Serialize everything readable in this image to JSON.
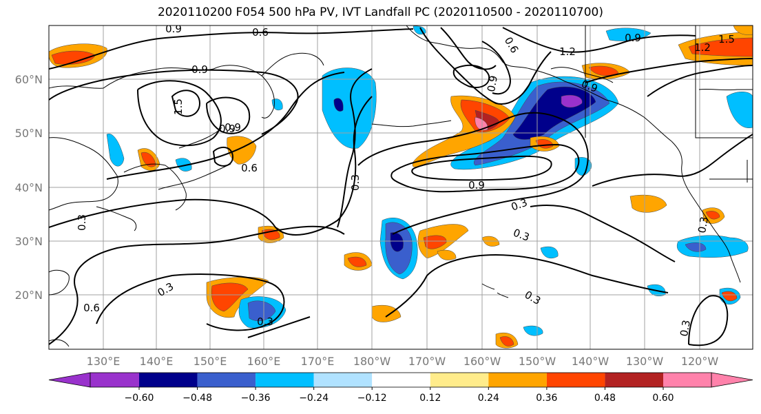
{
  "title": "2020110200 F054 500 hPa PV, IVT Landfall PC (2020110500 - 2020110700)",
  "lat_labels": [
    "60°N",
    "50°N",
    "40°N",
    "30°N",
    "20°N"
  ],
  "lon_labels": [
    "130°E",
    "140°E",
    "150°E",
    "160°E",
    "170°E",
    "180°W",
    "170°W",
    "160°W",
    "150°W",
    "140°W",
    "130°W",
    "120°W"
  ],
  "contour_labels": [
    "0.9",
    "0.6",
    "0.9",
    "0.9",
    "1.5",
    "0.9",
    "0.6",
    "0.3",
    "0.3",
    "0.9",
    "0.3",
    "0.3",
    "0.3",
    "0.3",
    "0.6",
    "0.3",
    "1.2",
    "0.9",
    "0.6",
    "0.9",
    "1.5",
    "1.2",
    "0.3",
    "0.3",
    "0.9"
  ],
  "colorbar": {
    "ticks": [
      "−0.60",
      "−0.48",
      "−0.36",
      "−0.24",
      "−0.12",
      "0.12",
      "0.24",
      "0.36",
      "0.48",
      "0.60"
    ],
    "colors": [
      "#9932cc",
      "#00008b",
      "#3a5fcd",
      "#00bfff",
      "#b0e2ff",
      "#ffffff",
      "#ffec8b",
      "#ffa500",
      "#ff4500",
      "#b22222",
      "#ff82ab"
    ]
  }
}
